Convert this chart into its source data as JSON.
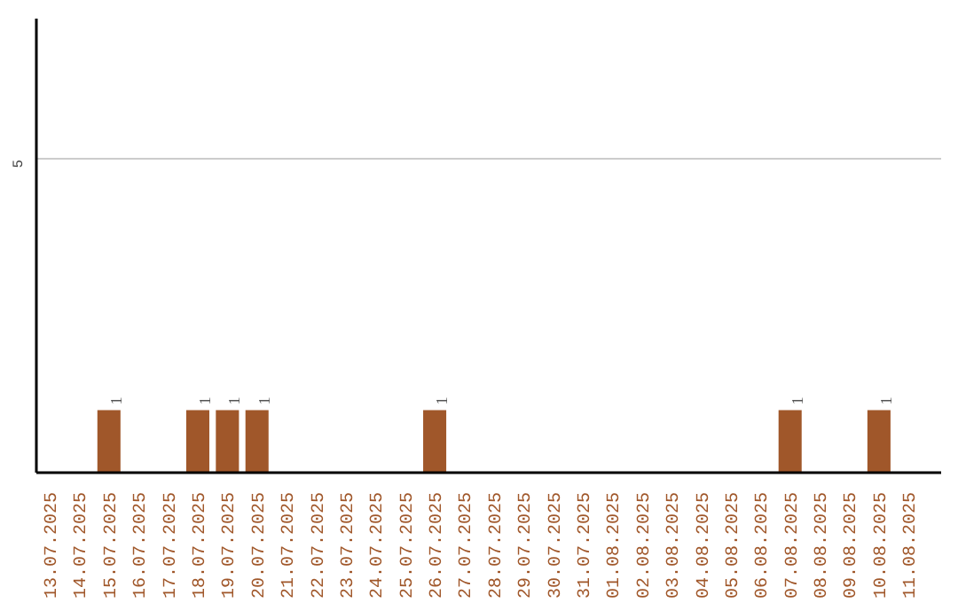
{
  "chart_data": {
    "type": "bar",
    "categories": [
      "13.07.2025",
      "14.07.2025",
      "15.07.2025",
      "16.07.2025",
      "17.07.2025",
      "18.07.2025",
      "19.07.2025",
      "20.07.2025",
      "21.07.2025",
      "22.07.2025",
      "23.07.2025",
      "24.07.2025",
      "25.07.2025",
      "26.07.2025",
      "27.07.2025",
      "28.07.2025",
      "29.07.2025",
      "30.07.2025",
      "31.07.2025",
      "01.08.2025",
      "02.08.2025",
      "03.08.2025",
      "04.08.2025",
      "05.08.2025",
      "06.08.2025",
      "07.08.2025",
      "08.08.2025",
      "09.08.2025",
      "10.08.2025",
      "11.08.2025"
    ],
    "values": [
      0,
      0,
      1,
      0,
      0,
      1,
      1,
      1,
      0,
      0,
      0,
      0,
      0,
      1,
      0,
      0,
      0,
      0,
      0,
      0,
      0,
      0,
      0,
      0,
      0,
      1,
      0,
      0,
      1,
      0
    ],
    "value_labels": [
      null,
      null,
      "1",
      null,
      null,
      "1",
      "1",
      "1",
      null,
      null,
      null,
      null,
      null,
      "1",
      null,
      null,
      null,
      null,
      null,
      null,
      null,
      null,
      null,
      null,
      null,
      "1",
      null,
      null,
      "1",
      null
    ],
    "color": "#a0572a",
    "ylim": [
      0,
      7.25
    ],
    "yticks": [
      5
    ],
    "grid": "y"
  }
}
